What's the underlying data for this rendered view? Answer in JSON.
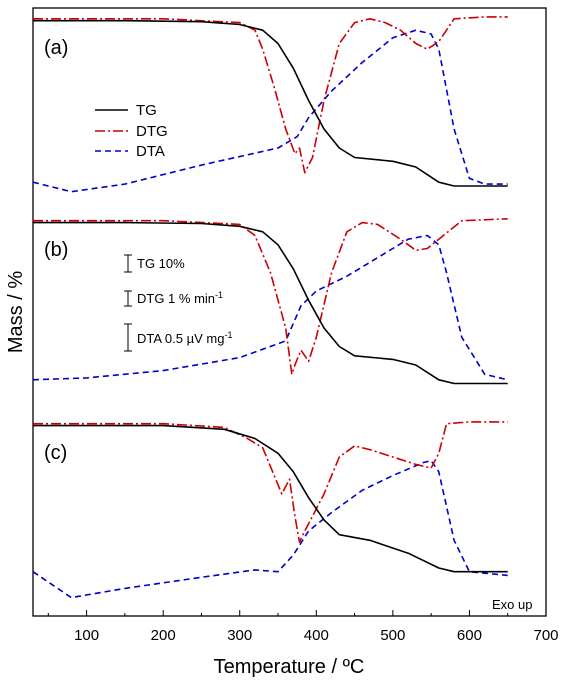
{
  "chart_data": {
    "type": "line",
    "xlabel": "Temperature / ºC",
    "ylabel": "Mass / %",
    "xlim": [
      30,
      700
    ],
    "x_ticks": [
      100,
      200,
      300,
      400,
      500,
      600,
      700
    ],
    "y_ticks_shown": false,
    "grid": false,
    "legend": {
      "placement": "upper-left of panel (a)",
      "entries": [
        {
          "name": "TG",
          "style": "solid",
          "color": "#000000"
        },
        {
          "name": "DTG",
          "style": "dash-dot",
          "color": "#cc0000"
        },
        {
          "name": "DTA",
          "style": "dashed",
          "color": "#0000cc"
        }
      ]
    },
    "scale_bars": [
      {
        "label": "TG 10%",
        "sup": ""
      },
      {
        "label": "DTG 1 % min",
        "sup": "-1"
      },
      {
        "label": "DTA 0.5 µV mg",
        "sup": "-1"
      }
    ],
    "annotation": "Exo up",
    "panels": [
      {
        "label": "(a)",
        "series": [
          {
            "name": "TG",
            "x": [
              30,
              150,
              250,
              300,
              330,
              350,
              370,
              390,
              410,
              430,
              450,
              500,
              530,
              560,
              580,
              650
            ],
            "y": [
              97,
              97,
              96.5,
              95,
              92,
              85,
              72,
              55,
              40,
              30,
              25,
              23,
              20,
              12,
              10,
              10
            ]
          },
          {
            "name": "DTG",
            "x": [
              30,
              200,
              300,
              320,
              330,
              345,
              360,
              372,
              378,
              385,
              395,
              410,
              430,
              450,
              470,
              490,
              510,
              530,
              545,
              560,
              580,
              620,
              650
            ],
            "y": [
              98,
              98,
              96,
              92,
              82,
              62,
              40,
              27,
              30,
              17,
              25,
              55,
              85,
              96,
              98,
              96,
              92,
              85,
              82,
              86,
              98,
              99,
              99
            ]
          },
          {
            "name": "DTA",
            "x": [
              30,
              80,
              150,
              250,
              350,
              375,
              390,
              420,
              460,
              500,
              530,
              550,
              560,
              580,
              600,
              620,
              650
            ],
            "y": [
              12,
              7,
              11,
              21,
              30,
              36,
              46,
              60,
              75,
              88,
              92,
              90,
              82,
              40,
              14,
              11,
              11
            ]
          }
        ]
      },
      {
        "label": "(b)",
        "series": [
          {
            "name": "TG",
            "x": [
              30,
              150,
              250,
              300,
              330,
              350,
              370,
              390,
              410,
              430,
              450,
              500,
              530,
              560,
              580,
              650
            ],
            "y": [
              97,
              97,
              96.5,
              95,
              92,
              85,
              72,
              55,
              40,
              30,
              25,
              23,
              20,
              12,
              10,
              10
            ]
          },
          {
            "name": "DTG",
            "x": [
              30,
              200,
              300,
              320,
              340,
              360,
              368,
              372,
              380,
              390,
              400,
              420,
              440,
              460,
              480,
              510,
              530,
              545,
              560,
              590,
              650
            ],
            "y": [
              98,
              98,
              96,
              90,
              70,
              40,
              15,
              20,
              28,
              22,
              35,
              70,
              92,
              97,
              96,
              88,
              82,
              83,
              88,
              98,
              99
            ]
          },
          {
            "name": "DTA",
            "x": [
              30,
              100,
              200,
              300,
              360,
              380,
              400,
              440,
              480,
              520,
              545,
              560,
              570,
              590,
              620,
              650
            ],
            "y": [
              12,
              13,
              17,
              24,
              33,
              52,
              60,
              68,
              78,
              88,
              90,
              85,
              70,
              35,
              15,
              12
            ]
          }
        ]
      },
      {
        "label": "(c)",
        "series": [
          {
            "name": "TG",
            "x": [
              30,
              200,
              280,
              320,
              350,
              370,
              390,
              410,
              430,
              470,
              520,
              560,
              580,
              650
            ],
            "y": [
              97,
              97,
              95,
              90,
              82,
              72,
              58,
              46,
              38,
              35,
              28,
              20,
              18,
              18
            ]
          },
          {
            "name": "DTG",
            "x": [
              30,
              200,
              280,
              310,
              330,
              345,
              355,
              365,
              372,
              378,
              385,
              395,
              410,
              430,
              450,
              470,
              500,
              530,
              550,
              560,
              570,
              600,
              650
            ],
            "y": [
              98,
              98,
              96,
              90,
              85,
              70,
              60,
              68,
              48,
              34,
              40,
              48,
              60,
              80,
              86,
              84,
              80,
              76,
              74,
              82,
              98,
              99,
              99
            ]
          },
          {
            "name": "DTA",
            "x": [
              30,
              80,
              150,
              250,
              320,
              350,
              370,
              390,
              420,
              460,
              500,
              540,
              550,
              560,
              580,
              600,
              650
            ],
            "y": [
              18,
              4,
              9,
              15,
              19,
              18,
              27,
              40,
              50,
              62,
              70,
              77,
              78,
              72,
              35,
              18,
              16
            ]
          }
        ]
      }
    ]
  }
}
